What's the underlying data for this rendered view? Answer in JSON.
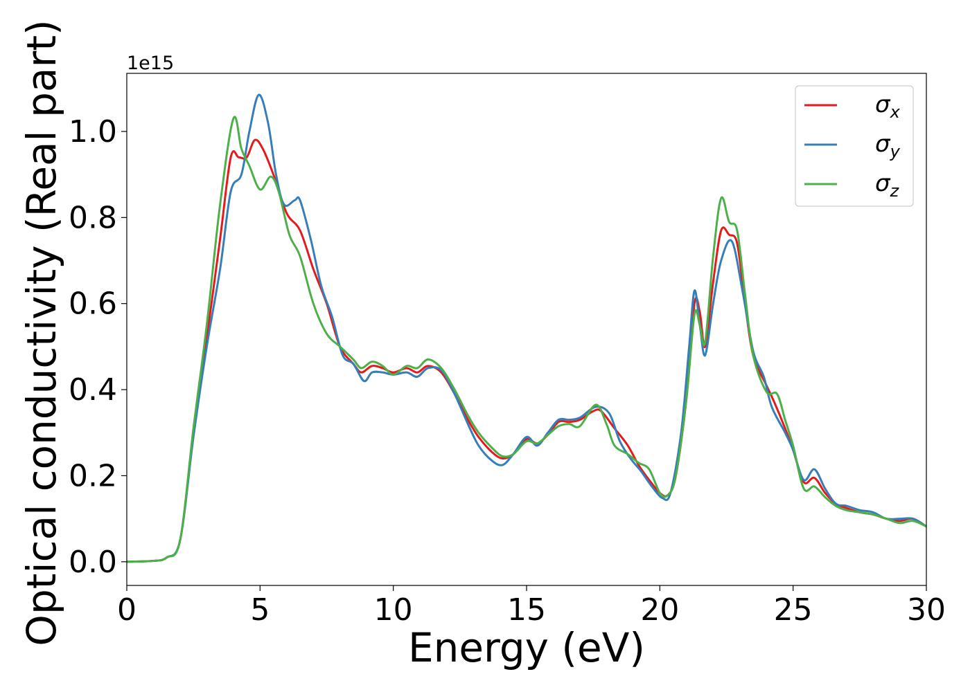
{
  "chart_data": {
    "type": "line",
    "title": "",
    "xlabel": "Energy (eV)",
    "ylabel": "Optical conductivity (Real part)",
    "y_offset_label": "1e15",
    "xlim": [
      0,
      30
    ],
    "ylim": [
      -0.055,
      1.135
    ],
    "xticks": [
      0,
      5,
      10,
      15,
      20,
      25,
      30
    ],
    "xtick_labels": [
      "0",
      "5",
      "10",
      "15",
      "20",
      "25",
      "30"
    ],
    "yticks": [
      0.0,
      0.2,
      0.4,
      0.6,
      0.8,
      1.0
    ],
    "ytick_labels": [
      "0.0",
      "0.2",
      "0.4",
      "0.6",
      "0.8",
      "1.0"
    ],
    "grid": false,
    "legend_position": "top-right",
    "series": [
      {
        "name": "σx",
        "symbol": "σ",
        "subscript": "x",
        "color": "#e41a1c",
        "points": [
          [
            0,
            0
          ],
          [
            1,
            0.002
          ],
          [
            1.5,
            0.01
          ],
          [
            2,
            0.05
          ],
          [
            2.5,
            0.3
          ],
          [
            3,
            0.52
          ],
          [
            3.5,
            0.75
          ],
          [
            3.9,
            0.94
          ],
          [
            4.2,
            0.94
          ],
          [
            4.5,
            0.94
          ],
          [
            4.8,
            0.98
          ],
          [
            5.1,
            0.96
          ],
          [
            5.5,
            0.9
          ],
          [
            6,
            0.81
          ],
          [
            6.5,
            0.77
          ],
          [
            7,
            0.68
          ],
          [
            7.5,
            0.6
          ],
          [
            8,
            0.5
          ],
          [
            8.5,
            0.46
          ],
          [
            8.8,
            0.44
          ],
          [
            9.2,
            0.455
          ],
          [
            9.6,
            0.45
          ],
          [
            10,
            0.44
          ],
          [
            10.5,
            0.45
          ],
          [
            10.9,
            0.44
          ],
          [
            11.3,
            0.455
          ],
          [
            11.8,
            0.44
          ],
          [
            12.3,
            0.39
          ],
          [
            12.8,
            0.33
          ],
          [
            13.2,
            0.29
          ],
          [
            13.7,
            0.255
          ],
          [
            14.1,
            0.24
          ],
          [
            14.5,
            0.25
          ],
          [
            15,
            0.285
          ],
          [
            15.4,
            0.275
          ],
          [
            15.8,
            0.295
          ],
          [
            16.2,
            0.325
          ],
          [
            16.6,
            0.325
          ],
          [
            17,
            0.33
          ],
          [
            17.5,
            0.35
          ],
          [
            17.8,
            0.35
          ],
          [
            18.3,
            0.31
          ],
          [
            18.8,
            0.27
          ],
          [
            19.2,
            0.225
          ],
          [
            19.6,
            0.19
          ],
          [
            20,
            0.16
          ],
          [
            20.3,
            0.155
          ],
          [
            20.6,
            0.2
          ],
          [
            21,
            0.38
          ],
          [
            21.3,
            0.6
          ],
          [
            21.5,
            0.58
          ],
          [
            21.7,
            0.5
          ],
          [
            22,
            0.65
          ],
          [
            22.3,
            0.77
          ],
          [
            22.6,
            0.76
          ],
          [
            22.9,
            0.74
          ],
          [
            23.2,
            0.6
          ],
          [
            23.5,
            0.48
          ],
          [
            24,
            0.41
          ],
          [
            24.3,
            0.37
          ],
          [
            24.7,
            0.31
          ],
          [
            25,
            0.26
          ],
          [
            25.4,
            0.185
          ],
          [
            25.8,
            0.195
          ],
          [
            26.2,
            0.16
          ],
          [
            26.6,
            0.135
          ],
          [
            27,
            0.125
          ],
          [
            27.5,
            0.115
          ],
          [
            28,
            0.11
          ],
          [
            28.5,
            0.1
          ],
          [
            29,
            0.095
          ],
          [
            29.5,
            0.1
          ],
          [
            30,
            0.082
          ]
        ]
      },
      {
        "name": "σy",
        "symbol": "σ",
        "subscript": "y",
        "color": "#377eb8",
        "points": [
          [
            0,
            0
          ],
          [
            1,
            0.002
          ],
          [
            1.5,
            0.01
          ],
          [
            2,
            0.05
          ],
          [
            2.5,
            0.29
          ],
          [
            3,
            0.5
          ],
          [
            3.5,
            0.68
          ],
          [
            3.9,
            0.86
          ],
          [
            4.3,
            0.9
          ],
          [
            4.6,
            1.0
          ],
          [
            4.95,
            1.085
          ],
          [
            5.3,
            1.02
          ],
          [
            5.6,
            0.9
          ],
          [
            5.9,
            0.83
          ],
          [
            6.3,
            0.84
          ],
          [
            6.5,
            0.84
          ],
          [
            6.9,
            0.75
          ],
          [
            7.3,
            0.64
          ],
          [
            7.7,
            0.57
          ],
          [
            8.1,
            0.48
          ],
          [
            8.5,
            0.46
          ],
          [
            8.9,
            0.42
          ],
          [
            9.2,
            0.44
          ],
          [
            9.6,
            0.44
          ],
          [
            10,
            0.435
          ],
          [
            10.5,
            0.44
          ],
          [
            10.9,
            0.43
          ],
          [
            11.3,
            0.45
          ],
          [
            11.8,
            0.445
          ],
          [
            12.3,
            0.39
          ],
          [
            12.8,
            0.32
          ],
          [
            13.2,
            0.27
          ],
          [
            13.7,
            0.235
          ],
          [
            14.1,
            0.225
          ],
          [
            14.5,
            0.25
          ],
          [
            15,
            0.29
          ],
          [
            15.4,
            0.27
          ],
          [
            15.8,
            0.3
          ],
          [
            16.2,
            0.33
          ],
          [
            16.6,
            0.33
          ],
          [
            17,
            0.335
          ],
          [
            17.6,
            0.36
          ],
          [
            18.1,
            0.345
          ],
          [
            18.5,
            0.28
          ],
          [
            18.9,
            0.24
          ],
          [
            19.3,
            0.21
          ],
          [
            19.7,
            0.175
          ],
          [
            20.1,
            0.148
          ],
          [
            20.4,
            0.16
          ],
          [
            20.8,
            0.3
          ],
          [
            21.1,
            0.5
          ],
          [
            21.3,
            0.63
          ],
          [
            21.5,
            0.55
          ],
          [
            21.7,
            0.48
          ],
          [
            22,
            0.6
          ],
          [
            22.3,
            0.7
          ],
          [
            22.7,
            0.745
          ],
          [
            23.1,
            0.63
          ],
          [
            23.5,
            0.49
          ],
          [
            23.9,
            0.43
          ],
          [
            24.2,
            0.36
          ],
          [
            24.7,
            0.3
          ],
          [
            25,
            0.26
          ],
          [
            25.4,
            0.19
          ],
          [
            25.8,
            0.215
          ],
          [
            26.2,
            0.17
          ],
          [
            26.6,
            0.135
          ],
          [
            27,
            0.13
          ],
          [
            27.5,
            0.12
          ],
          [
            28,
            0.115
          ],
          [
            28.5,
            0.1
          ],
          [
            29,
            0.1
          ],
          [
            29.5,
            0.1
          ],
          [
            30,
            0.082
          ]
        ]
      },
      {
        "name": "σz",
        "symbol": "σ",
        "subscript": "z",
        "color": "#4daf4a",
        "points": [
          [
            0,
            0
          ],
          [
            1,
            0.002
          ],
          [
            1.5,
            0.01
          ],
          [
            2,
            0.05
          ],
          [
            2.5,
            0.31
          ],
          [
            3,
            0.55
          ],
          [
            3.5,
            0.83
          ],
          [
            4,
            1.03
          ],
          [
            4.3,
            0.96
          ],
          [
            4.6,
            0.92
          ],
          [
            5,
            0.865
          ],
          [
            5.4,
            0.895
          ],
          [
            5.7,
            0.86
          ],
          [
            6.1,
            0.76
          ],
          [
            6.5,
            0.71
          ],
          [
            7,
            0.6
          ],
          [
            7.5,
            0.53
          ],
          [
            8,
            0.5
          ],
          [
            8.5,
            0.47
          ],
          [
            8.8,
            0.45
          ],
          [
            9.2,
            0.465
          ],
          [
            9.6,
            0.455
          ],
          [
            10,
            0.435
          ],
          [
            10.5,
            0.455
          ],
          [
            10.9,
            0.45
          ],
          [
            11.3,
            0.47
          ],
          [
            11.8,
            0.45
          ],
          [
            12.3,
            0.4
          ],
          [
            12.8,
            0.34
          ],
          [
            13.2,
            0.3
          ],
          [
            13.7,
            0.265
          ],
          [
            14.1,
            0.245
          ],
          [
            14.5,
            0.25
          ],
          [
            15,
            0.28
          ],
          [
            15.4,
            0.275
          ],
          [
            15.8,
            0.295
          ],
          [
            16.2,
            0.315
          ],
          [
            16.6,
            0.32
          ],
          [
            17,
            0.315
          ],
          [
            17.6,
            0.365
          ],
          [
            18,
            0.32
          ],
          [
            18.3,
            0.27
          ],
          [
            18.8,
            0.25
          ],
          [
            19.2,
            0.23
          ],
          [
            19.6,
            0.215
          ],
          [
            20,
            0.16
          ],
          [
            20.3,
            0.155
          ],
          [
            20.6,
            0.2
          ],
          [
            21,
            0.38
          ],
          [
            21.3,
            0.575
          ],
          [
            21.5,
            0.55
          ],
          [
            21.7,
            0.51
          ],
          [
            22,
            0.71
          ],
          [
            22.3,
            0.845
          ],
          [
            22.6,
            0.79
          ],
          [
            22.9,
            0.77
          ],
          [
            23.2,
            0.62
          ],
          [
            23.5,
            0.48
          ],
          [
            24,
            0.395
          ],
          [
            24.4,
            0.39
          ],
          [
            24.7,
            0.33
          ],
          [
            25,
            0.27
          ],
          [
            25.4,
            0.17
          ],
          [
            25.8,
            0.175
          ],
          [
            26.2,
            0.15
          ],
          [
            26.6,
            0.13
          ],
          [
            27,
            0.12
          ],
          [
            27.5,
            0.115
          ],
          [
            28,
            0.11
          ],
          [
            28.5,
            0.1
          ],
          [
            29,
            0.09
          ],
          [
            29.5,
            0.095
          ],
          [
            30,
            0.082
          ]
        ]
      }
    ]
  }
}
